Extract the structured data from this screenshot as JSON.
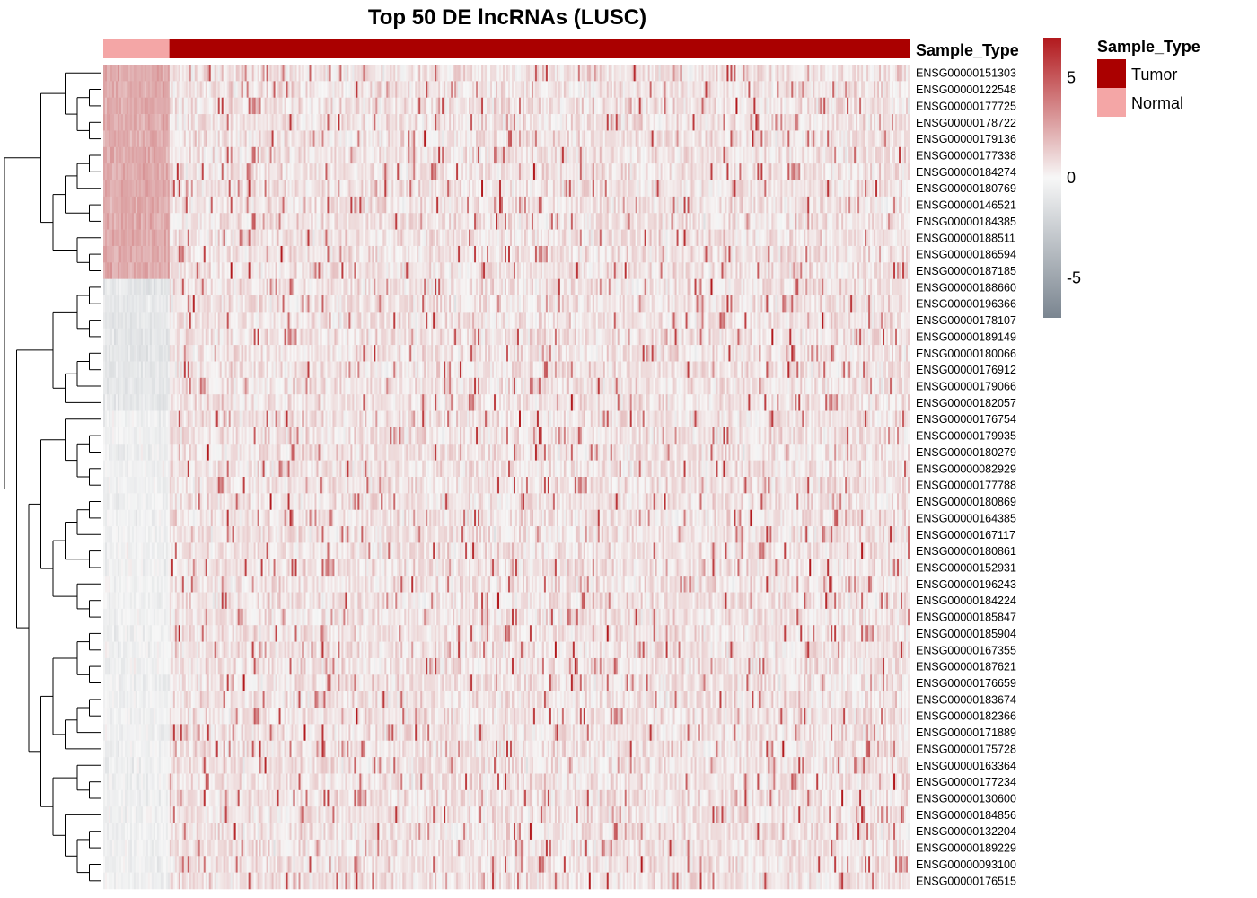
{
  "chart_data": {
    "type": "heatmap",
    "title": "Top 50 DE lncRNAs (LUSC)",
    "annotation": {
      "name": "Sample_Type",
      "normal_fraction": 0.082,
      "groups": [
        {
          "label": "Tumor",
          "color": "#AA0000"
        },
        {
          "label": "Normal",
          "color": "#F4A6A6"
        }
      ]
    },
    "color_scale": {
      "min": -7,
      "max": 7,
      "low": "#7A8590",
      "mid": "#F7F7F7",
      "high": "#B2191D",
      "ticks": [
        5,
        0,
        -5
      ]
    },
    "rows": [
      "ENSG00000151303",
      "ENSG00000122548",
      "ENSG00000177725",
      "ENSG00000178722",
      "ENSG00000179136",
      "ENSG00000177338",
      "ENSG00000184274",
      "ENSG00000180769",
      "ENSG00000146521",
      "ENSG00000184385",
      "ENSG00000188511",
      "ENSG00000186594",
      "ENSG00000187185",
      "ENSG00000188660",
      "ENSG00000196366",
      "ENSG00000178107",
      "ENSG00000189149",
      "ENSG00000180066",
      "ENSG00000176912",
      "ENSG00000179066",
      "ENSG00000182057",
      "ENSG00000176754",
      "ENSG00000179935",
      "ENSG00000180279",
      "ENSG00000082929",
      "ENSG00000177788",
      "ENSG00000180869",
      "ENSG00000164385",
      "ENSG00000167117",
      "ENSG00000180861",
      "ENSG00000152931",
      "ENSG00000196243",
      "ENSG00000184224",
      "ENSG00000185847",
      "ENSG00000185904",
      "ENSG00000167355",
      "ENSG00000187621",
      "ENSG00000176659",
      "ENSG00000183674",
      "ENSG00000182366",
      "ENSG00000171889",
      "ENSG00000175728",
      "ENSG00000163364",
      "ENSG00000177234",
      "ENSG00000130600",
      "ENSG00000184856",
      "ENSG00000132204",
      "ENSG00000189229",
      "ENSG00000093100",
      "ENSG00000176515"
    ],
    "row_clusters": [
      {
        "rows": [
          0,
          12
        ],
        "normal_mean": 2.4
      },
      {
        "rows": [
          13,
          20
        ],
        "normal_mean": -1.0
      },
      {
        "rows": [
          21,
          49
        ],
        "normal_mean": -0.4
      }
    ],
    "tumor_mean": 0.6
  }
}
